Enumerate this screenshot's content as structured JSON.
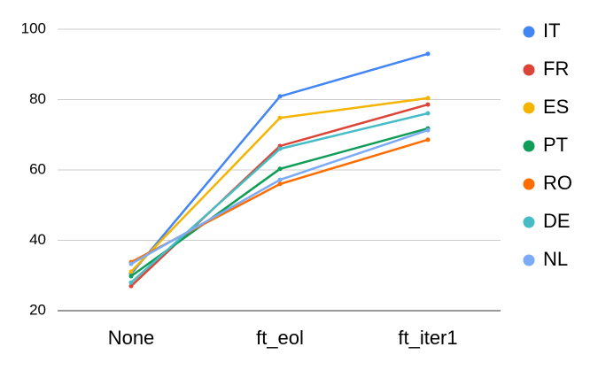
{
  "chart_data": {
    "type": "line",
    "categories": [
      "None",
      "ft_eol",
      "ft_iter1"
    ],
    "series": [
      {
        "name": "IT",
        "color": "#4285f4",
        "values": [
          30.5,
          80.9,
          93.0
        ]
      },
      {
        "name": "FR",
        "color": "#db4437",
        "values": [
          27.0,
          66.8,
          78.6
        ]
      },
      {
        "name": "ES",
        "color": "#f4b400",
        "values": [
          31.1,
          74.8,
          80.4
        ]
      },
      {
        "name": "PT",
        "color": "#0f9d58",
        "values": [
          29.8,
          60.3,
          71.8
        ]
      },
      {
        "name": "RO",
        "color": "#ff6d00",
        "values": [
          33.8,
          56.0,
          68.6
        ]
      },
      {
        "name": "DE",
        "color": "#46bdc6",
        "values": [
          28.0,
          66.0,
          76.1
        ]
      },
      {
        "name": "NL",
        "color": "#7baaf7",
        "values": [
          33.3,
          57.2,
          71.3
        ]
      }
    ],
    "ylim": [
      20,
      100
    ],
    "yticks": [
      20,
      40,
      60,
      80,
      100
    ],
    "grid": true,
    "legend": "right"
  }
}
